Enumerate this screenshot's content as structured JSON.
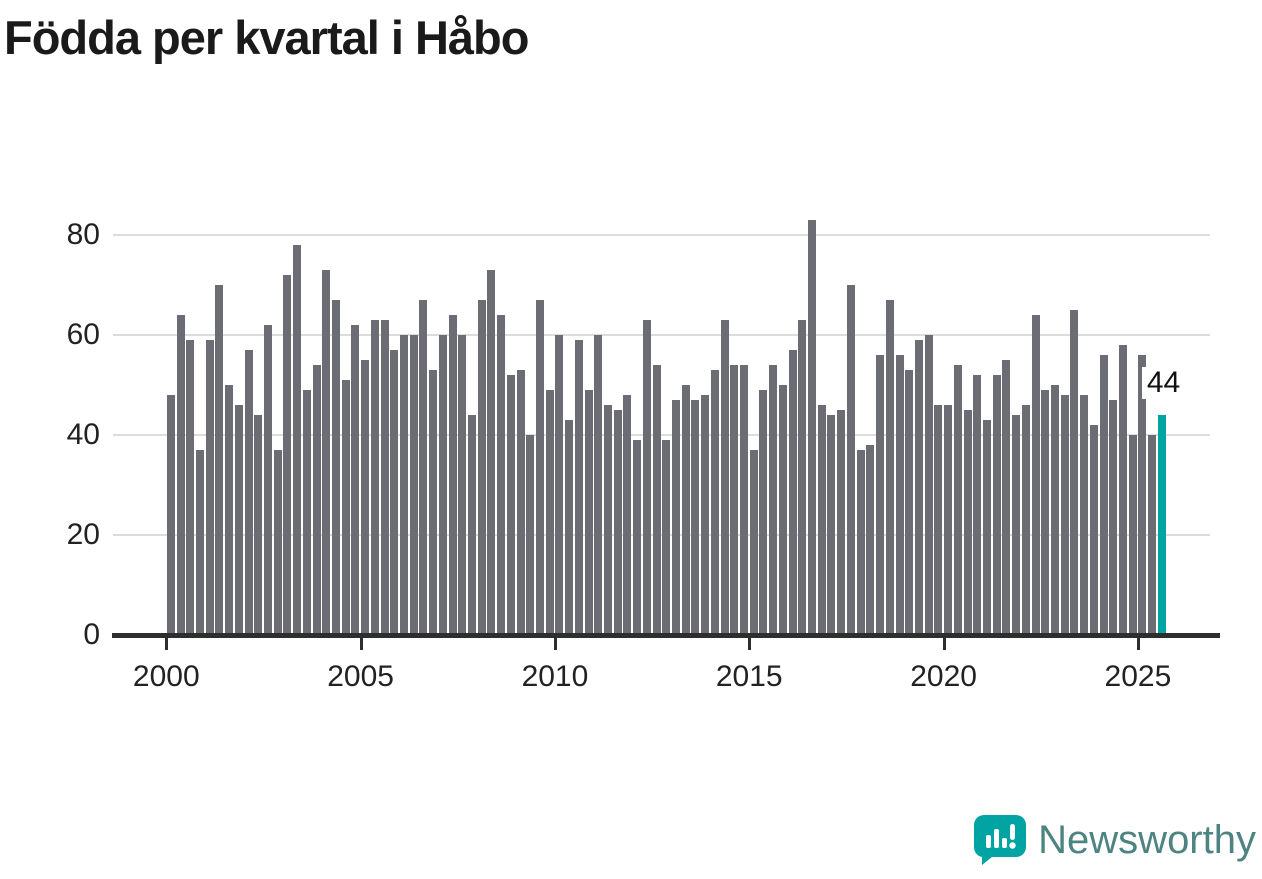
{
  "chart": {
    "title": "Födda per kvartal i Håbo"
  },
  "chart_data": {
    "type": "bar",
    "title": "Födda per kvartal i Håbo",
    "xlabel": "",
    "ylabel": "",
    "ylim": [
      0,
      80
    ],
    "grid": "horizontal",
    "y_ticks": [
      0,
      20,
      40,
      60,
      80
    ],
    "x_ticks": [
      "2000",
      "2005",
      "2010",
      "2015",
      "2020",
      "2025"
    ],
    "bar_color": "#6c6c74",
    "highlight_color": "#00a4a2",
    "highlight_index": 102,
    "annotation": {
      "text": "44",
      "applies_to": "2025 Q3"
    },
    "categories": [
      "2000 Q1",
      "2000 Q2",
      "2000 Q3",
      "2000 Q4",
      "2001 Q1",
      "2001 Q2",
      "2001 Q3",
      "2001 Q4",
      "2002 Q1",
      "2002 Q2",
      "2002 Q3",
      "2002 Q4",
      "2003 Q1",
      "2003 Q2",
      "2003 Q3",
      "2003 Q4",
      "2004 Q1",
      "2004 Q2",
      "2004 Q3",
      "2004 Q4",
      "2005 Q1",
      "2005 Q2",
      "2005 Q3",
      "2005 Q4",
      "2006 Q1",
      "2006 Q2",
      "2006 Q3",
      "2006 Q4",
      "2007 Q1",
      "2007 Q2",
      "2007 Q3",
      "2007 Q4",
      "2008 Q1",
      "2008 Q2",
      "2008 Q3",
      "2008 Q4",
      "2009 Q1",
      "2009 Q2",
      "2009 Q3",
      "2009 Q4",
      "2010 Q1",
      "2010 Q2",
      "2010 Q3",
      "2010 Q4",
      "2011 Q1",
      "2011 Q2",
      "2011 Q3",
      "2011 Q4",
      "2012 Q1",
      "2012 Q2",
      "2012 Q3",
      "2012 Q4",
      "2013 Q1",
      "2013 Q2",
      "2013 Q3",
      "2013 Q4",
      "2014 Q1",
      "2014 Q2",
      "2014 Q3",
      "2014 Q4",
      "2015 Q1",
      "2015 Q2",
      "2015 Q3",
      "2015 Q4",
      "2016 Q1",
      "2016 Q2",
      "2016 Q3",
      "2016 Q4",
      "2017 Q1",
      "2017 Q2",
      "2017 Q3",
      "2017 Q4",
      "2018 Q1",
      "2018 Q2",
      "2018 Q3",
      "2018 Q4",
      "2019 Q1",
      "2019 Q2",
      "2019 Q3",
      "2019 Q4",
      "2020 Q1",
      "2020 Q2",
      "2020 Q3",
      "2020 Q4",
      "2021 Q1",
      "2021 Q2",
      "2021 Q3",
      "2021 Q4",
      "2022 Q1",
      "2022 Q2",
      "2022 Q3",
      "2022 Q4",
      "2023 Q1",
      "2023 Q2",
      "2023 Q3",
      "2023 Q4",
      "2024 Q1",
      "2024 Q2",
      "2024 Q3",
      "2024 Q4",
      "2025 Q1",
      "2025 Q2",
      "2025 Q3"
    ],
    "values": [
      48,
      64,
      59,
      37,
      59,
      70,
      50,
      46,
      57,
      44,
      62,
      37,
      72,
      78,
      49,
      54,
      73,
      67,
      51,
      62,
      55,
      63,
      63,
      57,
      60,
      60,
      67,
      53,
      60,
      64,
      60,
      44,
      67,
      73,
      64,
      52,
      53,
      40,
      67,
      49,
      60,
      43,
      59,
      49,
      60,
      46,
      45,
      48,
      39,
      63,
      54,
      39,
      47,
      50,
      47,
      48,
      53,
      63,
      54,
      54,
      37,
      49,
      54,
      50,
      57,
      63,
      83,
      46,
      44,
      45,
      70,
      37,
      38,
      56,
      67,
      56,
      53,
      59,
      60,
      46,
      46,
      54,
      45,
      52,
      43,
      52,
      55,
      44,
      46,
      64,
      49,
      50,
      48,
      65,
      48,
      42,
      56,
      47,
      58,
      40,
      56,
      40,
      44
    ]
  },
  "logo": {
    "text": "Newsworthy",
    "icon": "newsworthy-bar-chart-bubble-icon",
    "icon_color": "#00a4a2",
    "text_color": "#4d8381"
  }
}
